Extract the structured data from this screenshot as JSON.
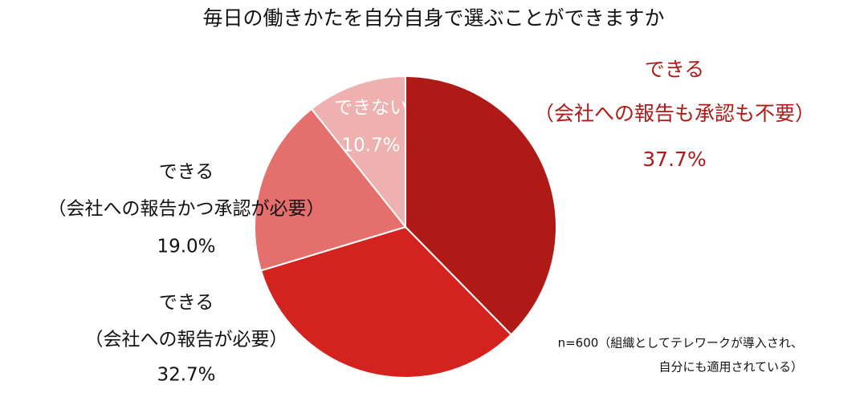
{
  "chart_data": {
    "type": "pie",
    "title": "毎日の働きかたを自分自身で選ぶことができますか",
    "categories": [
      [
        "できる",
        "（会社への報告も承認も不要）"
      ],
      [
        "できる",
        "（会社への報告が必要）"
      ],
      [
        "できる",
        "（会社への報告かつ承認が必要）"
      ],
      [
        "できない"
      ]
    ],
    "values": [
      37.7,
      32.7,
      19.0,
      10.7
    ],
    "value_labels": [
      "37.7%",
      "32.7%",
      "19.0%",
      "10.7%"
    ],
    "colors": [
      "#b01a16",
      "#d4231f",
      "#e56f6d",
      "#efb0b0"
    ],
    "note": [
      "n=600（組織としてテレワークが導入され、",
      "自分にも適用されている）"
    ]
  }
}
